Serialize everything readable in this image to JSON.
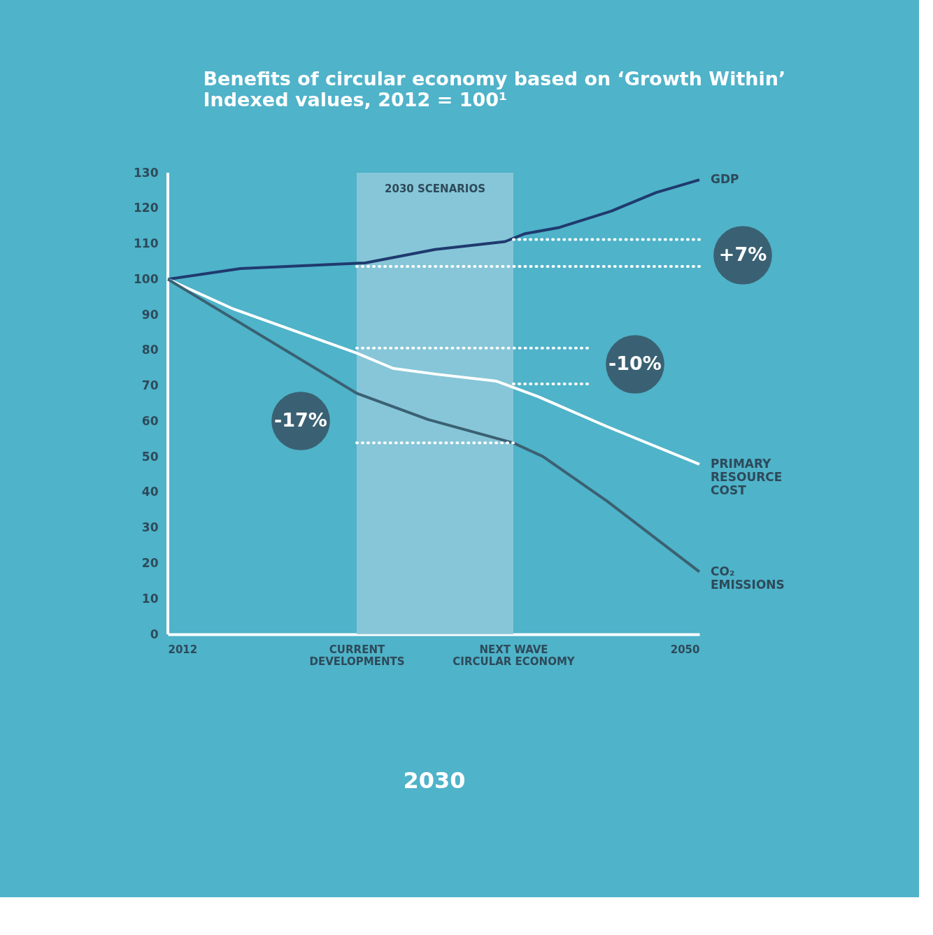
{
  "chart_data": {
    "type": "line",
    "title": "Benefits of circular economy based on ‘Growth Within’",
    "subtitle": "Indexed values, 2012 = 100¹",
    "xlim": [
      2012,
      2050
    ],
    "xticks": [
      2012,
      {
        "value": 2025.5,
        "label": "CURRENT DEVELOPMENTS"
      },
      {
        "value": 2036.7,
        "label": "NEXT WAVE CIRCULAR ECONOMY"
      },
      2050
    ],
    "ylim": [
      0,
      130
    ],
    "yticks": [
      0,
      10,
      20,
      30,
      40,
      50,
      60,
      70,
      80,
      90,
      100,
      110,
      120,
      130
    ],
    "grid": false,
    "legend": false,
    "bands": [
      {
        "axis": "x",
        "from": 2025.5,
        "to": 2036.7,
        "label": "2030 SCENARIOS",
        "color": "#8cc8d9"
      }
    ],
    "ref_lines": [
      {
        "axis": "x",
        "value": 2012,
        "color": "#ffffff"
      }
    ],
    "annotations": [
      "+7%",
      "-10%",
      "-17%",
      "2030"
    ],
    "series": [
      {
        "name": "GDP",
        "type": "line",
        "color": "#1f3a6e",
        "x": [
          2012,
          2017.2,
          2026.1,
          2031.1,
          2036.1,
          2037.5,
          2040,
          2043.7,
          2046.9,
          2050
        ],
        "values": [
          100,
          103,
          104.6,
          108.4,
          110.6,
          112.8,
          114.6,
          119.2,
          124.4,
          128
        ]
      },
      {
        "name": "PRIMARY RESOURCE COST",
        "type": "line",
        "color": "#ffffff",
        "x": [
          2012,
          2016.7,
          2025.5,
          2028.1,
          2031.1,
          2035.5,
          2038.5,
          2043.4,
          2050
        ],
        "values": [
          100,
          91.6,
          79.2,
          74.9,
          73.3,
          71.3,
          66.9,
          58.5,
          47.9
        ]
      },
      {
        "name": "CO₂ EMISSIONS",
        "type": "line",
        "color": "#3a6173",
        "x": [
          2012,
          2025.5,
          2030.6,
          2036.7,
          2038.8,
          2043.4,
          2050
        ],
        "values": [
          100,
          67.9,
          60.5,
          53.9,
          50.1,
          37.5,
          17.6
        ]
      },
      {
        "type": "line",
        "line_style": "dotted",
        "color": "#ffffff",
        "x": [
          2036.7,
          2050
        ],
        "values": [
          111.2,
          111.2
        ]
      },
      {
        "type": "line",
        "line_style": "dotted",
        "color": "#ffffff",
        "x": [
          2025.5,
          2050
        ],
        "values": [
          103.6,
          103.6
        ]
      },
      {
        "type": "line",
        "line_style": "dotted",
        "color": "#ffffff",
        "x": [
          2025.5,
          2042
        ],
        "values": [
          80.6,
          80.6
        ]
      },
      {
        "type": "line",
        "line_style": "dotted",
        "color": "#ffffff",
        "x": [
          2036.7,
          2042
        ],
        "values": [
          70.5,
          70.5
        ]
      },
      {
        "type": "line",
        "line_style": "dotted",
        "color": "#ffffff",
        "x": [
          2025.5,
          2036.7
        ],
        "values": [
          53.9,
          53.9
        ]
      }
    ]
  }
}
